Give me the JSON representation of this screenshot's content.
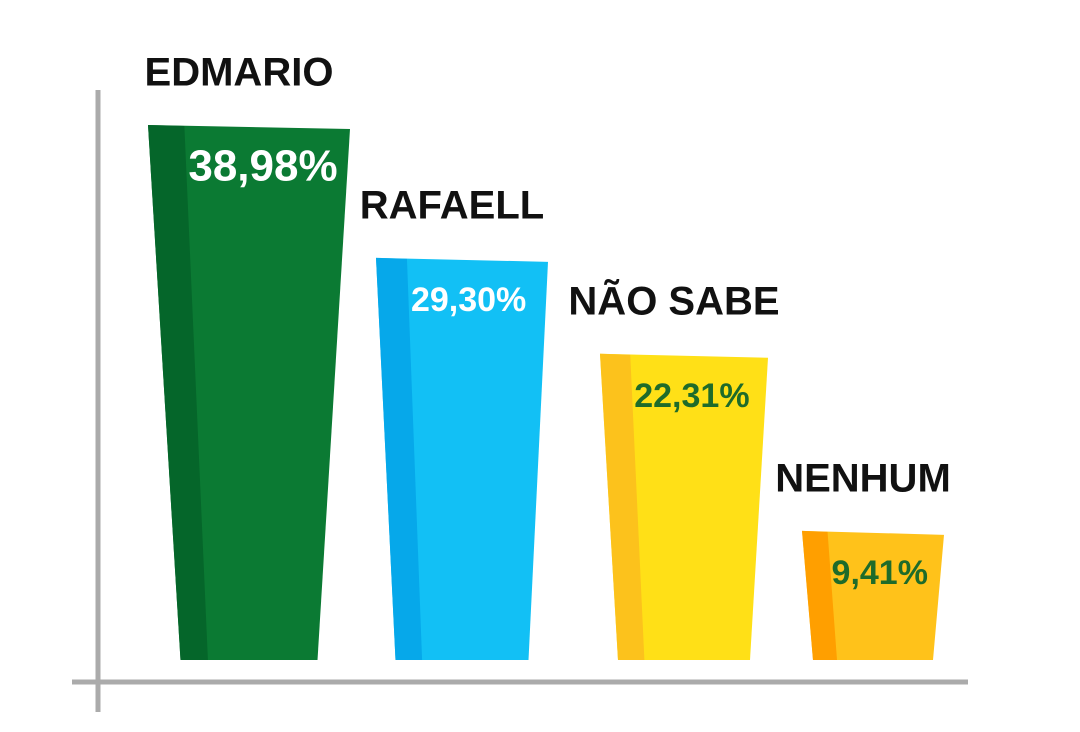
{
  "chart_data": {
    "type": "bar",
    "categories": [
      "EDMARIO",
      "RAFAELL",
      "NÃO SABE",
      "NENHUM"
    ],
    "values": [
      38.98,
      29.3,
      22.31,
      9.41
    ],
    "value_labels": [
      "38,98%",
      "29,30%",
      "22,31%",
      "9,41%"
    ],
    "colors": [
      "#0b7a33",
      "#12c0f5",
      "#ffe017",
      "#ffc21a"
    ],
    "side_colors": [
      "#05662a",
      "#06a8ea",
      "#fcc21c",
      "#ff9f00"
    ],
    "value_label_colors": [
      "#ffffff",
      "#ffffff",
      "#1e6b2a",
      "#1e6b2a"
    ]
  }
}
